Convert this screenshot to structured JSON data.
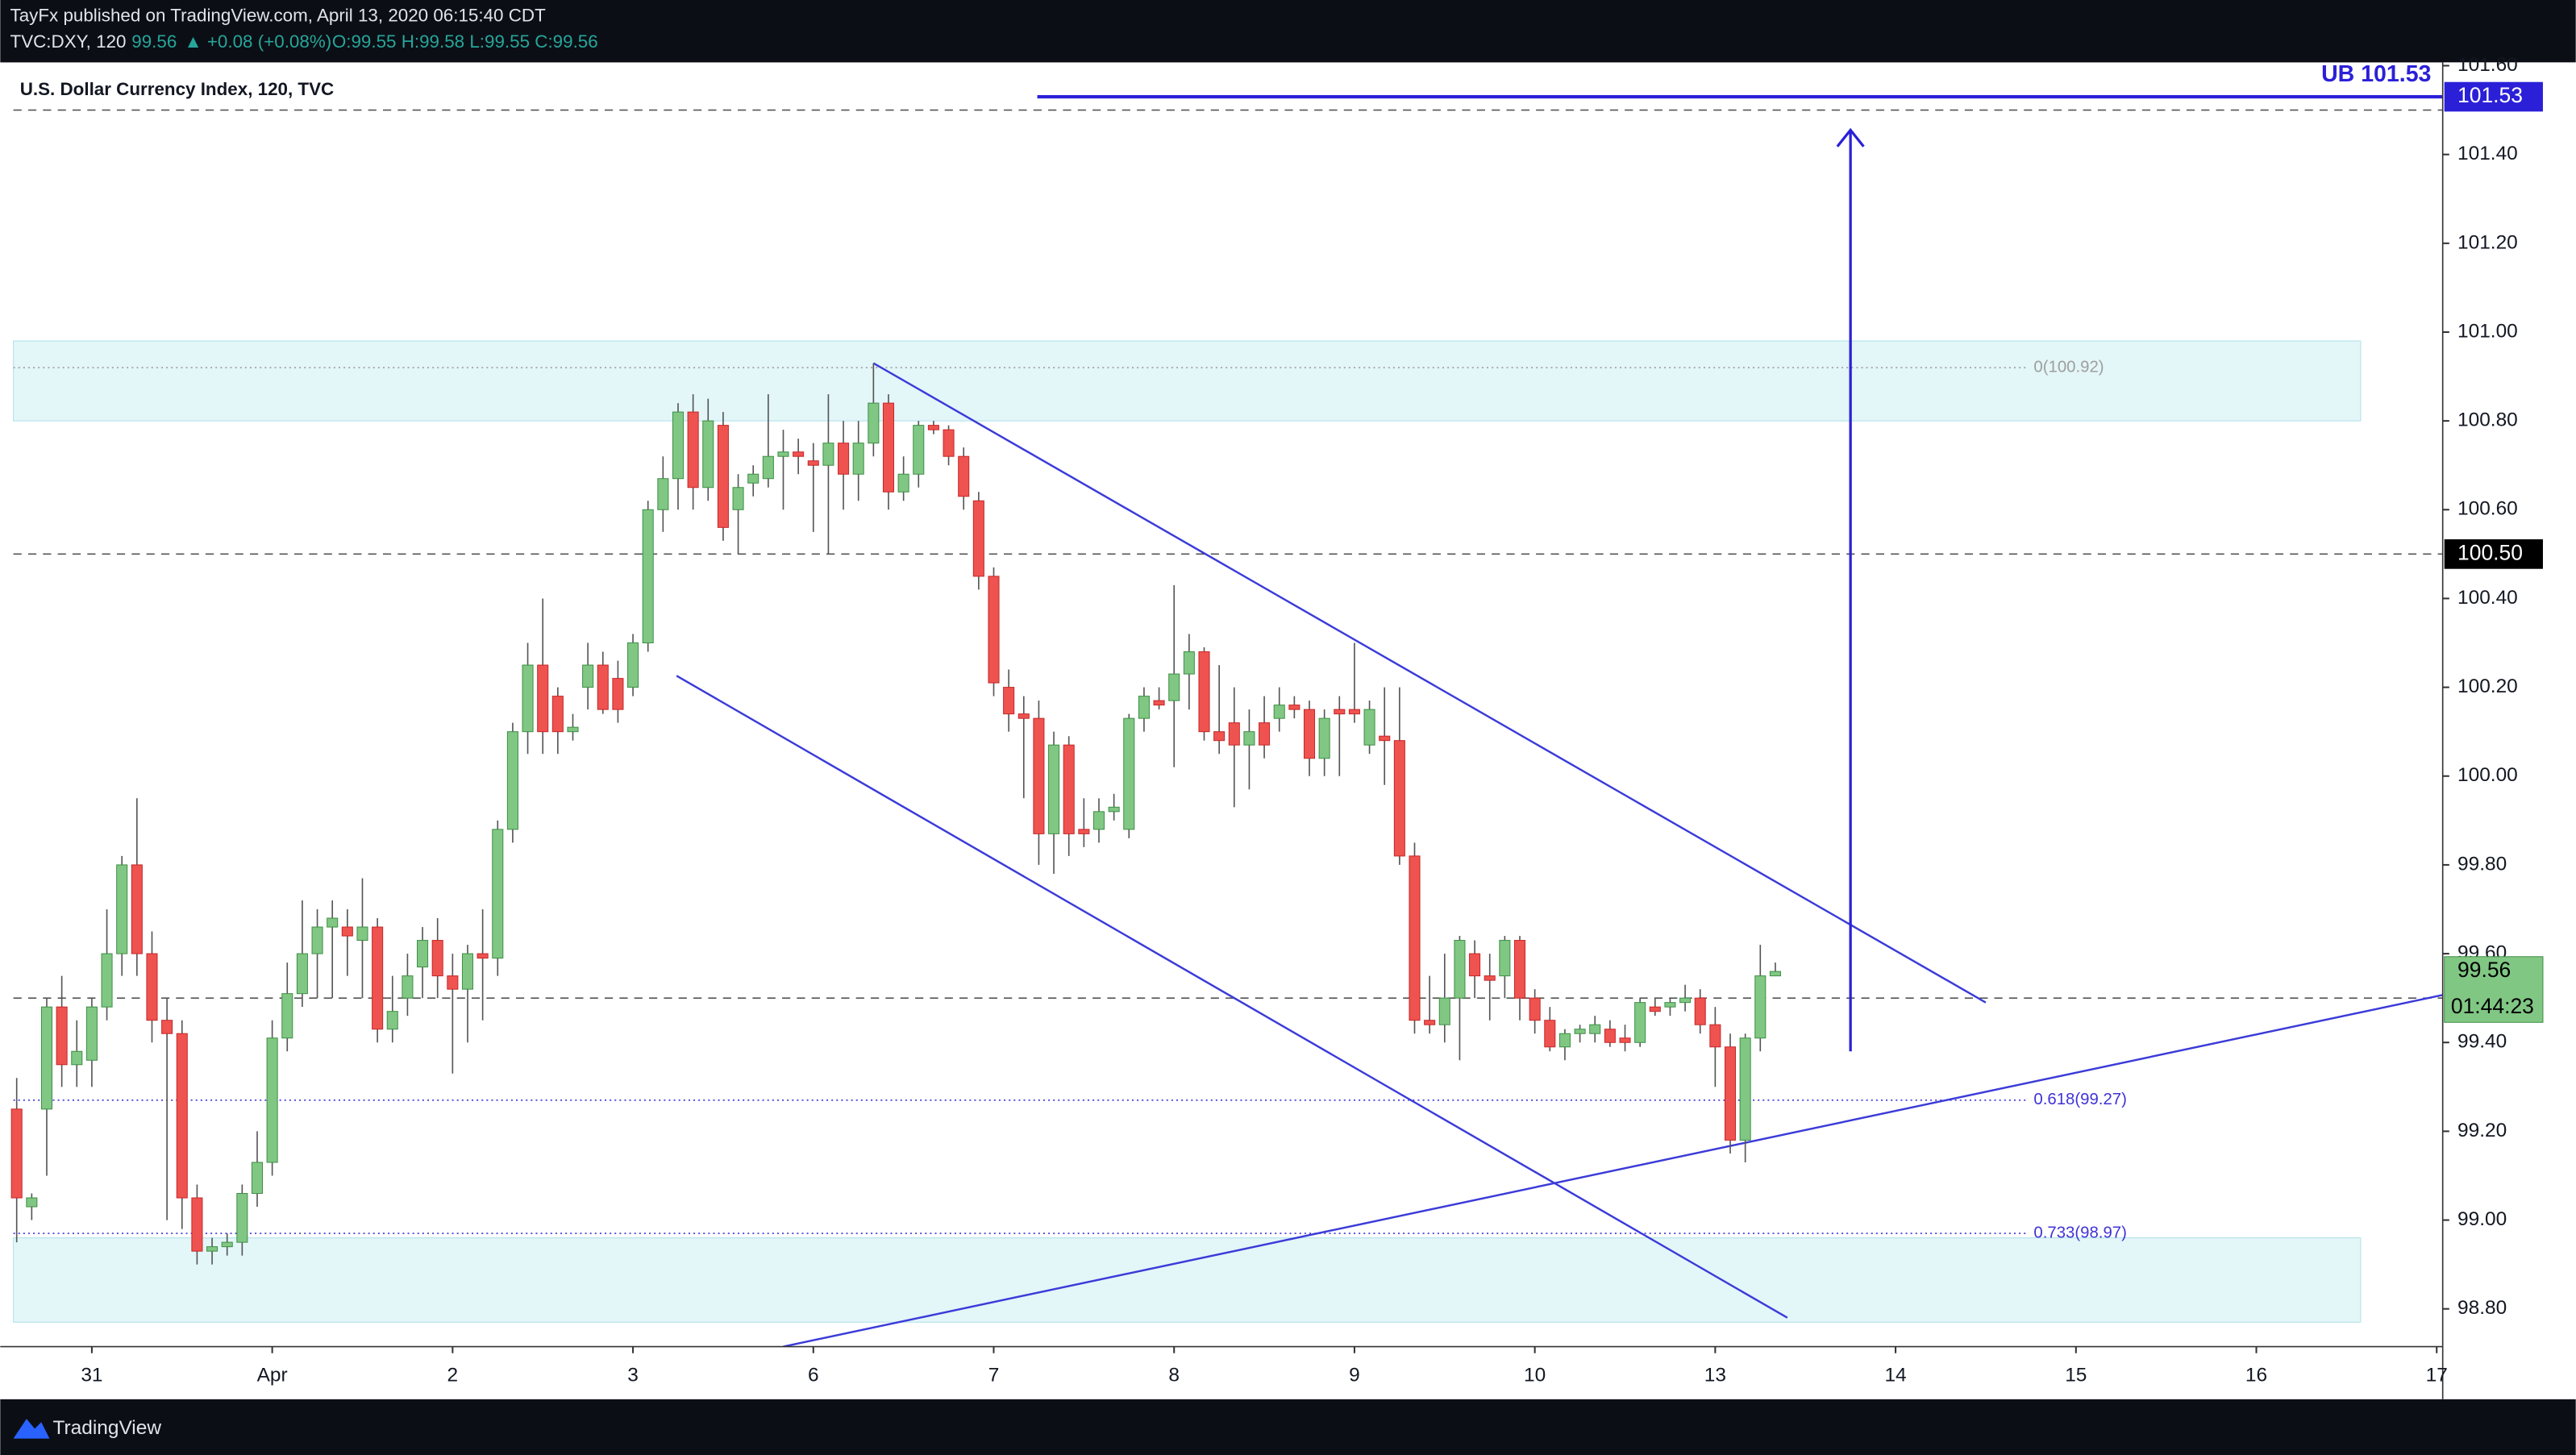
{
  "header": {
    "author_line": "TayFx published on TradingView.com, April 13, 2020 06:15:40 CDT",
    "symbol": "TVC:DXY, 120",
    "last": "99.56",
    "change": "▲ +0.08 (+0.08%)",
    "ohlc": "O:99.55 H:99.58 L:99.55 C:99.56"
  },
  "footer": {
    "brand": "TradingView"
  },
  "chart_data": {
    "type": "candlestick",
    "title": "U.S. Dollar Currency Index, 120, TVC",
    "up_color": "#81c784",
    "up_edge": "#3f8f46",
    "down_color": "#ef5350",
    "down_edge": "#c62828",
    "xlim": [
      -0.22,
      161.4
    ],
    "xticks": [
      {
        "value": 5,
        "label": "31"
      },
      {
        "value": 17,
        "label": "Apr"
      },
      {
        "value": 29,
        "label": "2"
      },
      {
        "value": 41,
        "label": "3"
      },
      {
        "value": 53,
        "label": "6"
      },
      {
        "value": 65,
        "label": "7"
      },
      {
        "value": 77,
        "label": "8"
      },
      {
        "value": 89,
        "label": "9"
      },
      {
        "value": 101,
        "label": "10"
      },
      {
        "value": 113,
        "label": "13"
      },
      {
        "value": 125,
        "label": "14"
      },
      {
        "value": 137,
        "label": "15"
      },
      {
        "value": 149,
        "label": "16"
      },
      {
        "value": 161,
        "label": "17"
      }
    ],
    "ylim": [
      98.715,
      101.6
    ],
    "yticks": [
      {
        "value": 98.8,
        "label": "98.80"
      },
      {
        "value": 99,
        "label": "99.00"
      },
      {
        "value": 99.2,
        "label": "99.20"
      },
      {
        "value": 99.4,
        "label": "99.40"
      },
      {
        "value": 99.6,
        "label": "99.60"
      },
      {
        "value": 99.8,
        "label": "99.80"
      },
      {
        "value": 100,
        "label": "100.00"
      },
      {
        "value": 100.2,
        "label": "100.20"
      },
      {
        "value": 100.4,
        "label": "100.40"
      },
      {
        "value": 100.6,
        "label": "100.60"
      },
      {
        "value": 100.8,
        "label": "100.80"
      },
      {
        "value": 101,
        "label": "101.00"
      },
      {
        "value": 101.2,
        "label": "101.20"
      },
      {
        "value": 101.4,
        "label": "101.40"
      },
      {
        "value": 101.6,
        "label": "101.60"
      }
    ],
    "candles": [
      [
        99.25,
        99.32,
        98.95,
        99.05
      ],
      [
        99.03,
        99.06,
        99.0,
        99.05
      ],
      [
        99.25,
        99.5,
        99.1,
        99.48
      ],
      [
        99.48,
        99.55,
        99.3,
        99.35
      ],
      [
        99.35,
        99.45,
        99.3,
        99.38
      ],
      [
        99.36,
        99.5,
        99.3,
        99.48
      ],
      [
        99.48,
        99.7,
        99.45,
        99.6
      ],
      [
        99.6,
        99.82,
        99.55,
        99.8
      ],
      [
        99.8,
        99.95,
        99.55,
        99.6
      ],
      [
        99.6,
        99.65,
        99.4,
        99.45
      ],
      [
        99.45,
        99.5,
        99.0,
        99.42
      ],
      [
        99.42,
        99.45,
        98.98,
        99.05
      ],
      [
        99.05,
        99.08,
        98.9,
        98.93
      ],
      [
        98.93,
        98.96,
        98.9,
        98.94
      ],
      [
        98.94,
        98.97,
        98.92,
        98.95
      ],
      [
        98.95,
        99.08,
        98.92,
        99.06
      ],
      [
        99.06,
        99.2,
        99.03,
        99.13
      ],
      [
        99.13,
        99.45,
        99.1,
        99.41
      ],
      [
        99.41,
        99.58,
        99.38,
        99.51
      ],
      [
        99.51,
        99.72,
        99.48,
        99.6
      ],
      [
        99.6,
        99.7,
        99.5,
        99.66
      ],
      [
        99.66,
        99.72,
        99.5,
        99.68
      ],
      [
        99.66,
        99.7,
        99.55,
        99.64
      ],
      [
        99.63,
        99.77,
        99.5,
        99.66
      ],
      [
        99.66,
        99.68,
        99.4,
        99.43
      ],
      [
        99.43,
        99.55,
        99.4,
        99.47
      ],
      [
        99.5,
        99.6,
        99.46,
        99.55
      ],
      [
        99.57,
        99.66,
        99.5,
        99.63
      ],
      [
        99.63,
        99.68,
        99.5,
        99.55
      ],
      [
        99.55,
        99.6,
        99.33,
        99.52
      ],
      [
        99.52,
        99.62,
        99.4,
        99.6
      ],
      [
        99.6,
        99.7,
        99.45,
        99.59
      ],
      [
        99.59,
        99.9,
        99.55,
        99.88
      ],
      [
        99.88,
        100.12,
        99.85,
        100.1
      ],
      [
        100.1,
        100.3,
        100.05,
        100.25
      ],
      [
        100.25,
        100.4,
        100.05,
        100.1
      ],
      [
        100.18,
        100.2,
        100.05,
        100.1
      ],
      [
        100.1,
        100.14,
        100.08,
        100.11
      ],
      [
        100.2,
        100.3,
        100.15,
        100.25
      ],
      [
        100.25,
        100.28,
        100.14,
        100.15
      ],
      [
        100.22,
        100.26,
        100.12,
        100.15
      ],
      [
        100.2,
        100.32,
        100.18,
        100.3
      ],
      [
        100.3,
        100.62,
        100.28,
        100.6
      ],
      [
        100.6,
        100.72,
        100.55,
        100.67
      ],
      [
        100.67,
        100.84,
        100.6,
        100.82
      ],
      [
        100.82,
        100.86,
        100.6,
        100.65
      ],
      [
        100.65,
        100.85,
        100.62,
        100.8
      ],
      [
        100.79,
        100.82,
        100.53,
        100.56
      ],
      [
        100.6,
        100.68,
        100.5,
        100.65
      ],
      [
        100.66,
        100.7,
        100.63,
        100.68
      ],
      [
        100.67,
        100.86,
        100.65,
        100.72
      ],
      [
        100.72,
        100.78,
        100.6,
        100.73
      ],
      [
        100.73,
        100.76,
        100.68,
        100.72
      ],
      [
        100.71,
        100.75,
        100.55,
        100.7
      ],
      [
        100.7,
        100.86,
        100.5,
        100.75
      ],
      [
        100.75,
        100.8,
        100.6,
        100.68
      ],
      [
        100.68,
        100.8,
        100.62,
        100.75
      ],
      [
        100.75,
        100.93,
        100.72,
        100.84
      ],
      [
        100.84,
        100.86,
        100.6,
        100.64
      ],
      [
        100.64,
        100.72,
        100.62,
        100.68
      ],
      [
        100.68,
        100.8,
        100.65,
        100.79
      ],
      [
        100.79,
        100.8,
        100.77,
        100.78
      ],
      [
        100.78,
        100.79,
        100.7,
        100.72
      ],
      [
        100.72,
        100.74,
        100.6,
        100.63
      ],
      [
        100.62,
        100.64,
        100.42,
        100.45
      ],
      [
        100.45,
        100.47,
        100.18,
        100.21
      ],
      [
        100.2,
        100.24,
        100.1,
        100.14
      ],
      [
        100.14,
        100.18,
        99.95,
        100.13
      ],
      [
        100.13,
        100.17,
        99.8,
        99.87
      ],
      [
        99.87,
        100.1,
        99.78,
        100.07
      ],
      [
        100.07,
        100.09,
        99.82,
        99.87
      ],
      [
        99.88,
        99.95,
        99.84,
        99.87
      ],
      [
        99.88,
        99.95,
        99.85,
        99.92
      ],
      [
        99.92,
        99.96,
        99.9,
        99.93
      ],
      [
        99.88,
        100.14,
        99.86,
        100.13
      ],
      [
        100.13,
        100.2,
        100.1,
        100.18
      ],
      [
        100.17,
        100.2,
        100.15,
        100.16
      ],
      [
        100.17,
        100.43,
        100.02,
        100.23
      ],
      [
        100.23,
        100.32,
        100.15,
        100.28
      ],
      [
        100.28,
        100.29,
        100.08,
        100.1
      ],
      [
        100.1,
        100.25,
        100.05,
        100.08
      ],
      [
        100.12,
        100.2,
        99.93,
        100.07
      ],
      [
        100.07,
        100.15,
        99.97,
        100.1
      ],
      [
        100.12,
        100.18,
        100.04,
        100.07
      ],
      [
        100.13,
        100.2,
        100.1,
        100.16
      ],
      [
        100.16,
        100.18,
        100.13,
        100.15
      ],
      [
        100.15,
        100.17,
        100.0,
        100.04
      ],
      [
        100.04,
        100.15,
        100.0,
        100.13
      ],
      [
        100.15,
        100.18,
        100.0,
        100.14
      ],
      [
        100.15,
        100.3,
        100.12,
        100.14
      ],
      [
        100.07,
        100.17,
        100.05,
        100.15
      ],
      [
        100.09,
        100.2,
        99.98,
        100.08
      ],
      [
        100.08,
        100.2,
        99.8,
        99.82
      ],
      [
        99.82,
        99.85,
        99.42,
        99.45
      ],
      [
        99.45,
        99.55,
        99.42,
        99.44
      ],
      [
        99.44,
        99.6,
        99.4,
        99.5
      ],
      [
        99.5,
        99.64,
        99.36,
        99.63
      ],
      [
        99.6,
        99.63,
        99.5,
        99.55
      ],
      [
        99.55,
        99.6,
        99.45,
        99.54
      ],
      [
        99.55,
        99.64,
        99.5,
        99.63
      ],
      [
        99.63,
        99.64,
        99.45,
        99.5
      ],
      [
        99.5,
        99.52,
        99.42,
        99.45
      ],
      [
        99.45,
        99.48,
        99.38,
        99.39
      ],
      [
        99.39,
        99.43,
        99.36,
        99.42
      ],
      [
        99.42,
        99.44,
        99.4,
        99.43
      ],
      [
        99.42,
        99.46,
        99.4,
        99.44
      ],
      [
        99.43,
        99.45,
        99.39,
        99.4
      ],
      [
        99.41,
        99.44,
        99.38,
        99.4
      ],
      [
        99.4,
        99.5,
        99.39,
        99.49
      ],
      [
        99.48,
        99.5,
        99.46,
        99.47
      ],
      [
        99.48,
        99.5,
        99.46,
        99.49
      ],
      [
        99.49,
        99.53,
        99.47,
        99.5
      ],
      [
        99.5,
        99.52,
        99.42,
        99.44
      ],
      [
        99.44,
        99.48,
        99.3,
        99.39
      ],
      [
        99.39,
        99.42,
        99.15,
        99.18
      ],
      [
        99.18,
        99.42,
        99.13,
        99.41
      ],
      [
        99.41,
        99.62,
        99.38,
        99.55
      ],
      [
        99.55,
        99.58,
        99.55,
        99.56
      ]
    ],
    "zones": [
      {
        "from": 100.8,
        "to": 100.98
      },
      {
        "from": 98.77,
        "to": 98.96
      }
    ],
    "hlines": [
      {
        "value": 101.5
      },
      {
        "value": 100.5,
        "label": "100.50"
      },
      {
        "value": 99.5
      }
    ],
    "fib_levels": [
      {
        "value": 100.92,
        "label": "0(100.92)",
        "color": "#9e9e9e"
      },
      {
        "value": 99.27,
        "label": "0.618(99.27)",
        "color": "#3f33d6"
      },
      {
        "value": 98.97,
        "label": "0.733(98.97)",
        "color": "#3f33d6"
      }
    ],
    "target_line": {
      "value": 101.53,
      "label": "101.53",
      "text": "UB 101.53",
      "start": 67.9,
      "color": "#2b20d8"
    },
    "trendlines": [
      {
        "x": [
          57,
          131
        ],
        "y": [
          100.93,
          99.49
        ]
      },
      {
        "x": [
          43.9,
          117.8
        ],
        "y": [
          100.226,
          98.78
        ]
      },
      {
        "x": [
          51,
          161.4
        ],
        "y": [
          98.715,
          99.507
        ]
      }
    ],
    "trend_color": "#3b3bd9",
    "arrow": {
      "x": 122,
      "from": 99.38,
      "to": 101.455
    },
    "price_label": {
      "value": 99.56,
      "label": "99.56",
      "countdown": "01:44:23"
    }
  }
}
